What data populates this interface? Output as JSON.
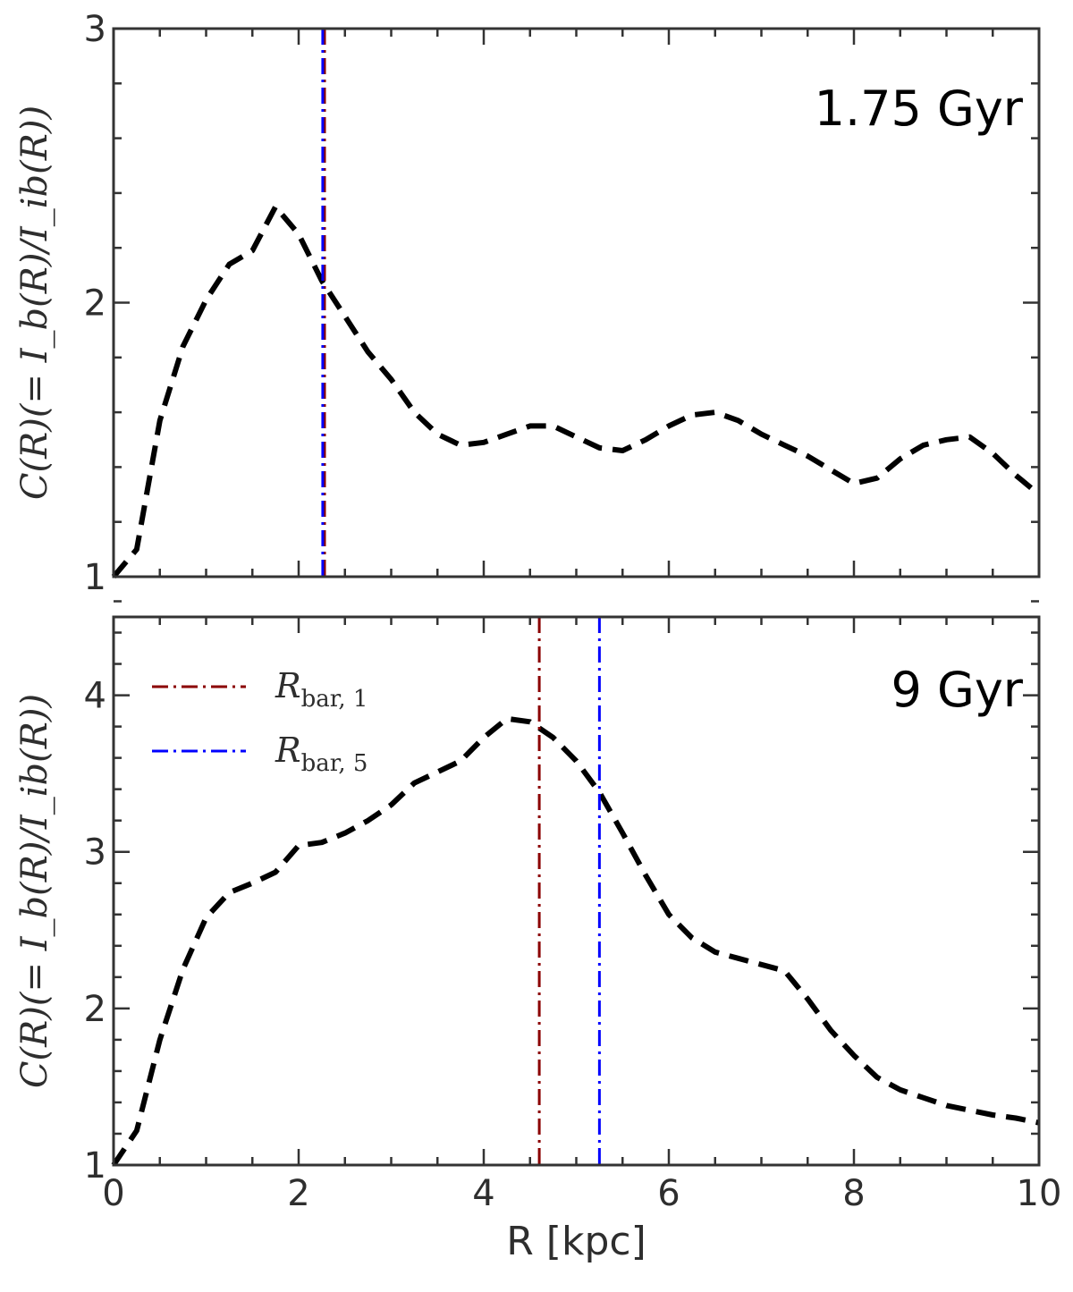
{
  "chart_data": [
    {
      "type": "line",
      "annotation": "1.75 Gyr",
      "ylabel": "C(R)(= I_b(R)/I_ib(R))",
      "xlabel": "",
      "xlim": [
        0,
        10
      ],
      "ylim": [
        1,
        3
      ],
      "yticks": [
        "1",
        "2",
        "3"
      ],
      "xticks": [],
      "series": [
        {
          "name": "C(R)",
          "x": [
            0.0,
            0.25,
            0.5,
            0.75,
            1.0,
            1.25,
            1.5,
            1.75,
            2.0,
            2.25,
            2.5,
            2.75,
            3.0,
            3.25,
            3.5,
            3.75,
            4.0,
            4.25,
            4.5,
            4.75,
            5.0,
            5.25,
            5.5,
            5.75,
            6.0,
            6.25,
            6.5,
            6.75,
            7.0,
            7.25,
            7.5,
            7.75,
            8.0,
            8.25,
            8.5,
            8.75,
            9.0,
            9.25,
            9.5,
            9.75,
            10.0
          ],
          "y": [
            1.0,
            1.1,
            1.57,
            1.84,
            2.01,
            2.14,
            2.19,
            2.35,
            2.25,
            2.08,
            1.95,
            1.82,
            1.72,
            1.6,
            1.52,
            1.48,
            1.49,
            1.52,
            1.55,
            1.55,
            1.51,
            1.47,
            1.46,
            1.5,
            1.55,
            1.59,
            1.6,
            1.57,
            1.52,
            1.48,
            1.44,
            1.39,
            1.34,
            1.36,
            1.43,
            1.48,
            1.5,
            1.51,
            1.45,
            1.37,
            1.3
          ]
        }
      ],
      "vlines": [
        {
          "name": "R_bar,1",
          "x": 2.28,
          "color": "#8b0000"
        },
        {
          "name": "R_bar,5",
          "x": 2.26,
          "color": "#0000ff"
        }
      ]
    },
    {
      "type": "line",
      "annotation": "9 Gyr",
      "ylabel": "C(R)(= I_b(R)/I_ib(R))",
      "xlabel": "R [kpc]",
      "xlim": [
        0,
        10
      ],
      "ylim": [
        1,
        4.5
      ],
      "yticks": [
        "1",
        "2",
        "3",
        "4"
      ],
      "xticks": [
        "0",
        "2",
        "4",
        "6",
        "8",
        "10"
      ],
      "series": [
        {
          "name": "C(R)",
          "x": [
            0.0,
            0.25,
            0.5,
            0.75,
            1.0,
            1.25,
            1.5,
            1.75,
            2.0,
            2.25,
            2.5,
            2.75,
            3.0,
            3.25,
            3.5,
            3.75,
            4.0,
            4.25,
            4.5,
            4.75,
            5.0,
            5.25,
            5.5,
            5.75,
            6.0,
            6.25,
            6.5,
            6.75,
            7.0,
            7.25,
            7.5,
            7.75,
            8.0,
            8.25,
            8.5,
            8.75,
            9.0,
            9.25,
            9.5,
            9.75,
            10.0
          ],
          "y": [
            1.0,
            1.22,
            1.8,
            2.25,
            2.58,
            2.74,
            2.8,
            2.87,
            3.04,
            3.06,
            3.12,
            3.2,
            3.3,
            3.44,
            3.51,
            3.58,
            3.73,
            3.85,
            3.83,
            3.73,
            3.58,
            3.38,
            3.12,
            2.85,
            2.6,
            2.45,
            2.36,
            2.32,
            2.28,
            2.24,
            2.06,
            1.86,
            1.7,
            1.56,
            1.48,
            1.43,
            1.38,
            1.35,
            1.32,
            1.3,
            1.27
          ]
        }
      ],
      "vlines": [
        {
          "name": "R_bar,1",
          "x": 4.6,
          "color": "#8b0000"
        },
        {
          "name": "R_bar,5",
          "x": 5.25,
          "color": "#0000ff"
        }
      ],
      "legend": {
        "position": "upper-left",
        "entries": [
          {
            "base": "R",
            "sub": "bar, 1",
            "color": "#8b0000"
          },
          {
            "base": "R",
            "sub": "bar, 5",
            "color": "#0000ff"
          }
        ]
      }
    }
  ],
  "colors": {
    "curve": "#000000",
    "r_bar_1": "#8b0000",
    "r_bar_5": "#0000ff",
    "axes": "#333333"
  }
}
